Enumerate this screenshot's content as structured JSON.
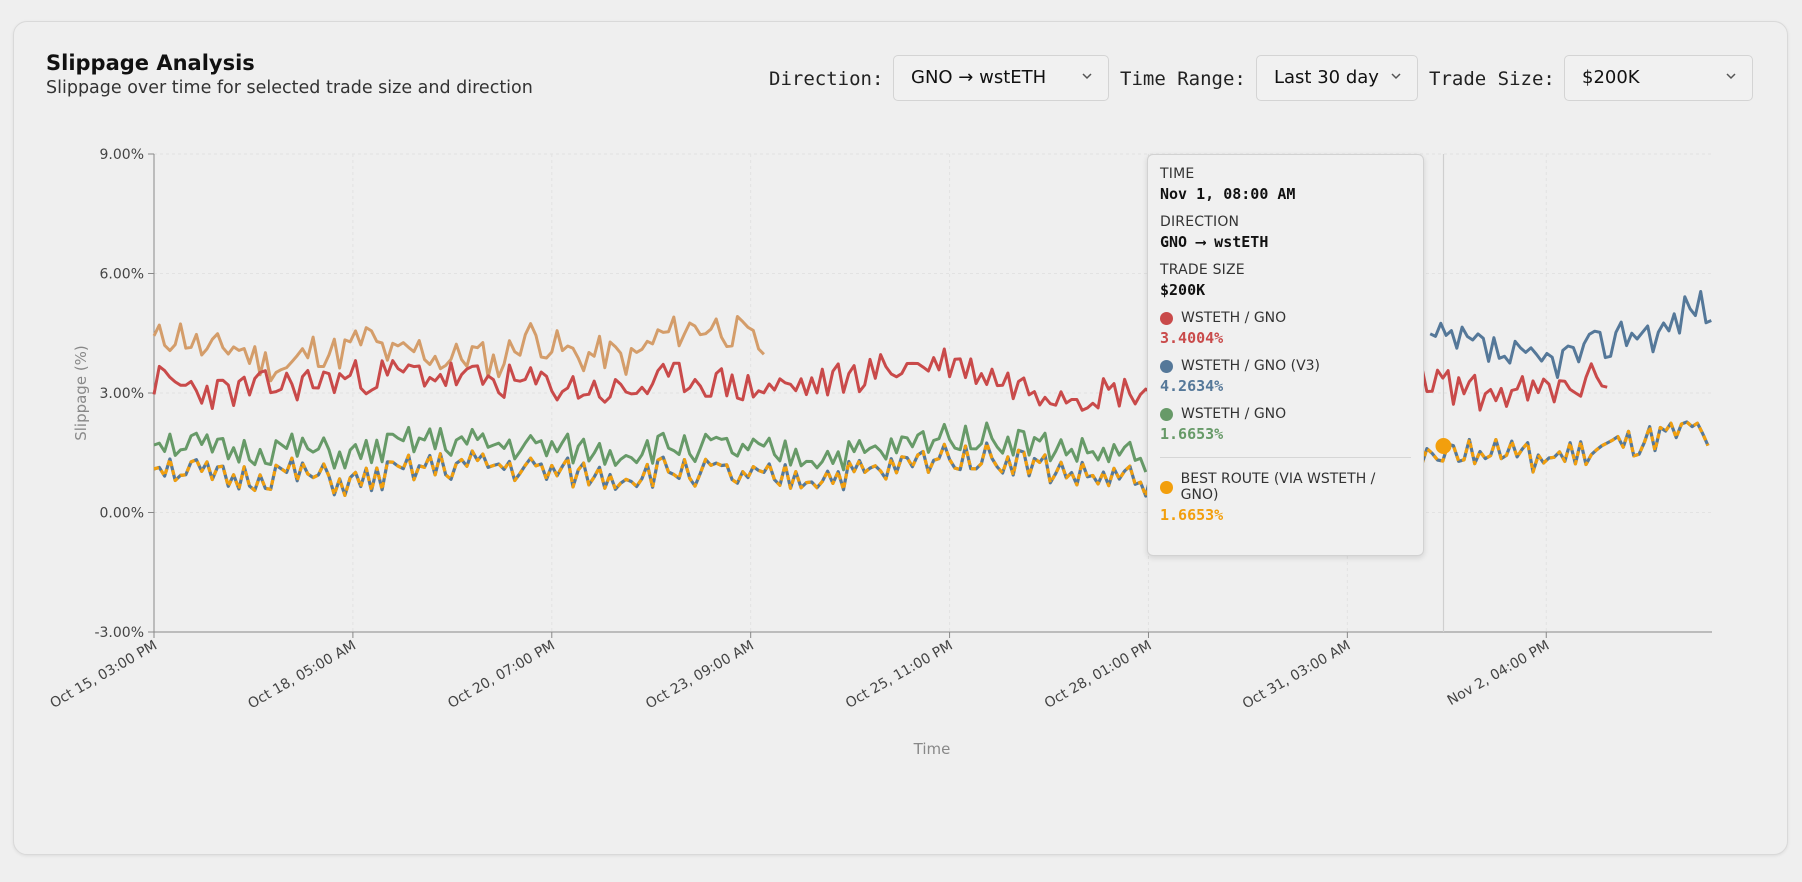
{
  "header": {
    "title": "Slippage Analysis",
    "subtitle": "Slippage over time for selected trade size and direction"
  },
  "controls": {
    "direction_label": "Direction:",
    "direction_value": "GNO → wstETH",
    "time_range_label": "Time Range:",
    "time_range_value": "Last 30 day",
    "trade_size_label": "Trade Size:",
    "trade_size_value": "$200K"
  },
  "tooltip": {
    "time_label": "TIME",
    "time_value": "Nov 1, 08:00 AM",
    "direction_label": "DIRECTION",
    "direction_value": "GNO ⟶ wstETH",
    "trade_size_label": "TRADE SIZE",
    "trade_size_value": "$200K",
    "series": [
      {
        "name": "WSTETH / GNO",
        "value": "3.4004%",
        "color": "#c94a4a"
      },
      {
        "name": "WSTETH / GNO (V3)",
        "value": "4.2634%",
        "color": "#557899"
      },
      {
        "name": "WSTETH / GNO",
        "value": "1.6653%",
        "color": "#679a68"
      }
    ],
    "best": {
      "name": "BEST ROUTE (VIA WSTETH / GNO)",
      "value": "1.6653%",
      "color": "#f29f0d"
    }
  },
  "chart_data": {
    "type": "line",
    "xlabel": "Time",
    "ylabel": "Slippage (%)",
    "ylim": [
      -3,
      9
    ],
    "yticks": [
      -3,
      0,
      3,
      6,
      9
    ],
    "ytick_labels": [
      "-3.00%",
      "0.00%",
      "3.00%",
      "6.00%",
      "9.00%"
    ],
    "x_range_hours": [
      0,
      470
    ],
    "xticks": [
      0,
      60,
      120,
      180,
      240,
      300,
      360,
      420
    ],
    "xtick_labels": [
      "Oct 15, 03:00 PM",
      "Oct 18, 05:00 AM",
      "Oct 20, 07:00 PM",
      "Oct 23, 09:00 AM",
      "Oct 25, 11:00 PM",
      "Oct 28, 01:00 PM",
      "Oct 31, 03:00 AM",
      "Nov 2, 04:00 PM"
    ],
    "hover_hour": 389,
    "series": [
      {
        "name": "WSTETH / GNO (tan)",
        "color": "#d49d6a",
        "x": [
          0,
          8,
          16,
          24,
          32,
          40,
          48,
          56,
          64,
          72,
          80,
          88,
          96,
          104,
          112,
          120,
          128,
          136,
          144,
          152,
          160,
          168,
          176,
          184
        ],
        "values": [
          4.3,
          4.5,
          4.0,
          4.2,
          3.8,
          3.6,
          4.1,
          4.0,
          4.4,
          3.9,
          4.1,
          3.8,
          4.0,
          3.7,
          4.5,
          4.2,
          3.9,
          4.0,
          3.8,
          4.4,
          4.6,
          4.7,
          4.5,
          4.1
        ]
      },
      {
        "name": "WSTETH / GNO",
        "color": "#c94a4a",
        "x": [
          0,
          20,
          40,
          60,
          80,
          100,
          120,
          140,
          160,
          180,
          200,
          220,
          240,
          260,
          280,
          300,
          320,
          340,
          360,
          380,
          400,
          420,
          430,
          440
        ],
        "values": [
          3.3,
          3.0,
          3.2,
          3.4,
          3.5,
          3.3,
          3.2,
          3.0,
          3.4,
          3.1,
          3.2,
          3.6,
          3.8,
          3.2,
          3.0,
          3.1,
          3.3,
          3.4,
          3.2,
          3.4,
          3.0,
          3.0,
          3.2,
          3.5
        ]
      },
      {
        "name": "WSTETH / GNO (V3)",
        "color": "#557899",
        "x": [
          385,
          395,
          405,
          415,
          425,
          435,
          445,
          455,
          465,
          470
        ],
        "values": [
          4.3,
          4.2,
          4.0,
          3.7,
          3.9,
          4.1,
          4.6,
          4.5,
          5.3,
          5.0
        ]
      },
      {
        "name": "WSTETH / GNO (green)",
        "color": "#679a68",
        "x": [
          0,
          20,
          40,
          60,
          80,
          100,
          120,
          140,
          160,
          180,
          200,
          220,
          240,
          260,
          280,
          300
        ],
        "values": [
          1.9,
          1.5,
          1.6,
          1.4,
          1.8,
          1.7,
          1.6,
          1.5,
          1.7,
          1.5,
          1.4,
          1.5,
          2.0,
          1.8,
          1.5,
          1.4
        ]
      },
      {
        "name": "BEST ROUTE (VIA WSTETH / GNO)",
        "color": "#f29f0d",
        "x": [
          0,
          20,
          40,
          60,
          80,
          100,
          120,
          140,
          160,
          180,
          200,
          220,
          240,
          260,
          280,
          300,
          320,
          340,
          360,
          380,
          389,
          400,
          420,
          440,
          460,
          470
        ],
        "values": [
          1.3,
          0.8,
          1.0,
          0.7,
          1.1,
          1.2,
          1.0,
          0.9,
          1.1,
          0.8,
          0.9,
          1.0,
          1.5,
          1.3,
          0.9,
          0.8,
          1.0,
          1.1,
          1.2,
          1.5,
          1.67,
          1.6,
          1.3,
          1.6,
          1.9,
          2.1
        ]
      }
    ]
  }
}
